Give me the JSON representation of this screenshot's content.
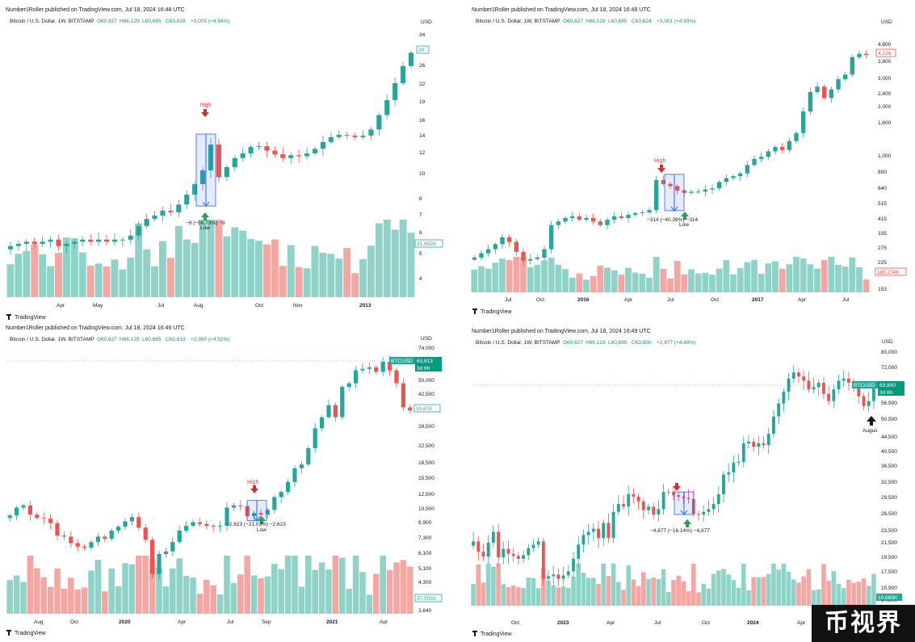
{
  "panels": [
    {
      "published": "Number1Roller published on TradingView.com, Jul 18, 2024 16:48 UTC",
      "symbol": "Bitcoin / U.S. Dollar, 1W, BITSTAMP",
      "ohlc": {
        "o": "O60,827",
        "h": "H66,129",
        "l": "L60,685",
        "c": "C63,828",
        "chg": "+3,005 (+4.94%)"
      },
      "currency": "USD",
      "price_axis": [
        "34",
        "30",
        "26",
        "22",
        "19",
        "16",
        "14",
        "12",
        "10",
        "8",
        "7",
        "6",
        "5",
        "4"
      ],
      "time_axis": [
        {
          "label": "Apr",
          "bold": false
        },
        {
          "label": "May",
          "bold": false
        },
        {
          "label": "Jul",
          "bold": false
        },
        {
          "label": "Aug",
          "bold": false
        },
        {
          "label": "Oct",
          "bold": false
        },
        {
          "label": "Nov",
          "bold": false
        },
        {
          "label": "2013",
          "bold": true
        }
      ],
      "price_tag": "30",
      "volume_tag": "31.692K",
      "high_label": "high",
      "low_label": "Low",
      "measure_label": "−9 (−56.73%) −9",
      "logo": "TradingView"
    },
    {
      "published": "Number1Roller published on TradingView.com, Jul 18, 2024 16:49 UTC",
      "symbol": "Bitcoin / U.S. Dollar, 1W, BITSTAMP",
      "ohlc": {
        "o": "O60,827",
        "h": "H66,129",
        "l": "L60,685",
        "c": "C63,624",
        "chg": "+3,001 (+4.93%)"
      },
      "currency": "USD",
      "price_axis": [
        "4,800",
        "3,800",
        "3,000",
        "2,400",
        "2,000",
        "1,600",
        "1,000",
        "800",
        "640",
        "515",
        "415",
        "335",
        "275",
        "225",
        "153"
      ],
      "time_axis": [
        {
          "label": "Jul",
          "bold": false
        },
        {
          "label": "Oct",
          "bold": false
        },
        {
          "label": "2016",
          "bold": true
        },
        {
          "label": "Apr",
          "bold": false
        },
        {
          "label": "Jul",
          "bold": false
        },
        {
          "label": "Oct",
          "bold": false
        },
        {
          "label": "2017",
          "bold": true
        },
        {
          "label": "Apr",
          "bold": false
        },
        {
          "label": "Jul",
          "bold": false
        }
      ],
      "price_tag": "4,226",
      "volume_tag": "185.234K",
      "high_label": "High",
      "low_label": "Low",
      "measure_label": "−314 (−40.26%) −314",
      "logo": "TradingView"
    },
    {
      "published": "Number1Roller published on TradingView.com, Jul 18, 2024 16:46 UTC",
      "symbol": "Bitcoin / U.S. Dollar, 1W, BITSTAMP",
      "ohlc": {
        "o": "O60,827",
        "h": "H66,129",
        "l": "L60,685",
        "c": "C63,813",
        "chg": "+2,990 (+4.92%)"
      },
      "currency": "USD",
      "price_axis": [
        "74,000",
        "50,000",
        "42,500",
        "28,500",
        "22,500",
        "18,500",
        "15,500",
        "12,500",
        "10,500",
        "8,900",
        "7,300",
        "6,100",
        "5,100",
        "4,300",
        "3,640"
      ],
      "time_axis": [
        {
          "label": "Aug",
          "bold": false
        },
        {
          "label": "Oct",
          "bold": false
        },
        {
          "label": "2020",
          "bold": true
        },
        {
          "label": "Apr",
          "bold": false
        },
        {
          "label": "Jul",
          "bold": false
        },
        {
          "label": "Sep",
          "bold": false
        },
        {
          "label": "2021",
          "bold": true
        },
        {
          "label": "Apr",
          "bold": false
        }
      ],
      "price_tag": "35,678",
      "ticker_tag": "BTCUSD",
      "last_price_tag": "63,813",
      "last_time_tag": "3d 6h",
      "volume_tag": "37.901K",
      "high_label": "High",
      "low_label": "Low",
      "measure_label": "−2,623 (−21.03%) −2,623",
      "logo": "TradingView"
    },
    {
      "published": "Number1Roller published on TradingView.com, Jul 18, 2024 16:49 UTC",
      "symbol": "Bitcoin / U.S. Dollar, 1W, BITSTAMP",
      "ohlc": {
        "o": "O60,827",
        "h": "H66,129",
        "l": "L60,685",
        "c": "C63,800",
        "chg": "+2,977 (+4.89%)"
      },
      "currency": "USD",
      "price_axis": [
        "80,000",
        "72,000",
        "56,500",
        "50,500",
        "44,500",
        "40,500",
        "36,500",
        "32,500",
        "29,500",
        "26,500",
        "23,500",
        "21,500",
        "19,500",
        "17,500",
        "15,900",
        "14,300"
      ],
      "time_axis": [
        {
          "label": "Oct",
          "bold": false
        },
        {
          "label": "2023",
          "bold": true
        },
        {
          "label": "Apr",
          "bold": false
        },
        {
          "label": "Jul",
          "bold": false
        },
        {
          "label": "Oct",
          "bold": false
        },
        {
          "label": "2024",
          "bold": true
        },
        {
          "label": "Apr",
          "bold": false
        }
      ],
      "ticker_tag": "BTCUSD",
      "last_price_tag": "63,800",
      "last_time_tag": "3d 6h",
      "volume_tag": "10.665K",
      "arrow_label": "Augus",
      "measure_label": "−4,877 (−16.14%) −4,877",
      "logo": "TradingView"
    }
  ],
  "watermark": "币视界",
  "colors": {
    "up": "#26a69a",
    "down": "#ef5350",
    "up_vol": "#8fd3c8",
    "down_vol": "#f4a6a3",
    "measure": "#2962ff",
    "text": "#131722"
  },
  "chart_data": [
    {
      "type": "candlestick",
      "title": "Bitcoin / U.S. Dollar, 1W, BITSTAMP",
      "ylabel": "USD",
      "y_scale": "log",
      "ylim": [
        3.4,
        36
      ],
      "x_ticks": [
        "Apr",
        "May",
        "Jul",
        "Aug",
        "Oct",
        "Nov",
        "2013"
      ],
      "close_path": [
        4.8,
        4.9,
        5.0,
        4.9,
        5.0,
        5.1,
        4.8,
        4.9,
        5.0,
        5.1,
        5.0,
        5.1,
        5.0,
        5.1,
        5.1,
        5.3,
        5.8,
        6.2,
        6.4,
        6.7,
        6.6,
        7.1,
        7.8,
        8.6,
        9.8,
        12.5,
        9.2,
        10.1,
        11.0,
        11.5,
        12.2,
        12.3,
        11.8,
        11.4,
        11.0,
        11.3,
        11.2,
        11.5,
        12.0,
        12.8,
        13.4,
        13.7,
        13.6,
        13.4,
        13.6,
        14.4,
        16.5,
        19.0,
        22.3,
        26.2,
        29.7
      ],
      "measure": {
        "from": 13.8,
        "to": 7.0,
        "label": "−9 (−56.73%) −9"
      }
    },
    {
      "type": "candlestick",
      "title": "Bitcoin / U.S. Dollar, 1W, BITSTAMP",
      "ylabel": "USD",
      "y_scale": "log",
      "ylim": [
        150,
        5200
      ],
      "x_ticks": [
        "Jul",
        "Oct",
        "2016",
        "Apr",
        "Jul",
        "Oct",
        "2017",
        "Apr",
        "Jul"
      ],
      "close_path": [
        240,
        255,
        270,
        290,
        320,
        300,
        260,
        230,
        235,
        240,
        270,
        380,
        400,
        420,
        430,
        410,
        420,
        400,
        380,
        410,
        430,
        420,
        440,
        450,
        455,
        470,
        720,
        680,
        660,
        620,
        600,
        610,
        610,
        630,
        640,
        700,
        740,
        760,
        790,
        890,
        970,
        1000,
        1080,
        1150,
        1100,
        1250,
        1400,
        1900,
        2500,
        2700,
        2300,
        2600,
        3000,
        3200,
        4100,
        4300,
        4226
      ],
      "measure": {
        "from": 780,
        "to": 466,
        "label": "−314 (−40.26%) −314"
      }
    },
    {
      "type": "candlestick",
      "title": "Bitcoin / U.S. Dollar, 1W, BITSTAMP",
      "ylabel": "USD",
      "y_scale": "log",
      "ylim": [
        3400,
        76000
      ],
      "x_ticks": [
        "Aug",
        "Oct",
        "2020",
        "Apr",
        "Jul",
        "Sep",
        "2021",
        "Apr"
      ],
      "close_path": [
        10500,
        11500,
        11800,
        10600,
        10200,
        10100,
        9600,
        8300,
        8200,
        7600,
        7300,
        7200,
        7700,
        8200,
        8000,
        8800,
        9200,
        9800,
        10300,
        9100,
        7900,
        5300,
        6700,
        6900,
        7700,
        8800,
        9300,
        9700,
        9500,
        9300,
        9200,
        9300,
        11500,
        11800,
        11700,
        10400,
        10800,
        10600,
        11200,
        13000,
        13800,
        15500,
        18200,
        19000,
        23000,
        29000,
        33000,
        38000,
        33000,
        47000,
        49000,
        57000,
        58000,
        59000,
        56000,
        63000,
        57000,
        49000,
        37000,
        35678
      ],
      "measure": {
        "from": 12500,
        "to": 9880,
        "label": "−2,623 (−21.03%) −2,623"
      }
    },
    {
      "type": "candlestick",
      "title": "Bitcoin / U.S. Dollar, 1W, BITSTAMP",
      "ylabel": "USD",
      "y_scale": "log",
      "ylim": [
        13800,
        82000
      ],
      "x_ticks": [
        "Oct",
        "2023",
        "Apr",
        "Jul",
        "Oct",
        "2024",
        "Apr"
      ],
      "close_path": [
        21500,
        20000,
        19300,
        21300,
        23000,
        19200,
        20400,
        19700,
        19400,
        19000,
        19500,
        20500,
        21000,
        21500,
        16500,
        16800,
        17000,
        16500,
        16900,
        17400,
        19000,
        21000,
        22500,
        23000,
        23500,
        22000,
        24500,
        22000,
        26500,
        28000,
        27500,
        30000,
        29500,
        28500,
        26800,
        27500,
        26000,
        27000,
        30500,
        30500,
        29800,
        29500,
        29200,
        29000,
        26100,
        26000,
        26500,
        27000,
        28000,
        30000,
        34500,
        35000,
        37500,
        37700,
        43000,
        43500,
        42000,
        43000,
        42500,
        46000,
        52000,
        57000,
        62000,
        68000,
        71000,
        69000,
        67000,
        63000,
        64000,
        66000,
        61000,
        58000,
        63000,
        67000,
        68000,
        66000,
        64000,
        60000,
        56000,
        58000,
        63800
      ],
      "measure": {
        "from": 30500,
        "to": 26000,
        "label": "−4,877 (−16.14%) −4,877"
      }
    }
  ]
}
